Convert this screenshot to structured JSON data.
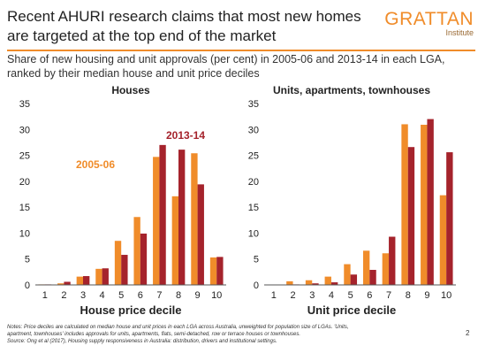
{
  "slide": {
    "title": "Recent AHURI research claims that most new homes are targeted at the top end of the market",
    "subtitle": "Share of new housing and unit approvals (per cent) in 2005-06 and 2013-14 in each LGA, ranked by their median house and unit price deciles",
    "logo": {
      "name": "GRATTAN",
      "sub": "Institute"
    },
    "notes": [
      "Notes: Price deciles are calculated on median house and unit prices in each LGA across Australia, unweighted for population size of LGAs. 'Units,",
      "apartment, townhouses' includes approvals for units, apartments, flats, semi-detached, row or terrace houses or townhouses.",
      "Source: Ong et al (2017), Housing supply responsiveness in Australia: distribution, drivers and institutional settings."
    ],
    "page_number": "2"
  },
  "colors": {
    "series_2005": "#f08c2a",
    "series_2013": "#a5232c",
    "accent": "#f08c2a"
  },
  "chart_data": [
    {
      "type": "bar",
      "title": "Houses",
      "xlabel": "House price decile",
      "ylabel": "",
      "ylim": [
        0,
        35
      ],
      "yticks": [
        0,
        5,
        10,
        15,
        20,
        25,
        30,
        35
      ],
      "categories": [
        "1",
        "2",
        "3",
        "4",
        "5",
        "6",
        "7",
        "8",
        "9",
        "10"
      ],
      "series": [
        {
          "name": "2005-06",
          "values": [
            0.1,
            0.3,
            1.6,
            3.1,
            8.5,
            13.1,
            24.7,
            17.1,
            25.4,
            5.3
          ]
        },
        {
          "name": "2013-14",
          "values": [
            0.1,
            0.6,
            1.7,
            3.2,
            5.8,
            9.9,
            27.0,
            26.1,
            19.4,
            5.4
          ]
        }
      ],
      "grid": false,
      "legend": "inline labels"
    },
    {
      "type": "bar",
      "title": "Units, apartments, townhouses",
      "xlabel": "Unit price decile",
      "ylabel": "",
      "ylim": [
        0,
        35
      ],
      "yticks": [
        0,
        5,
        10,
        15,
        20,
        25,
        30,
        35
      ],
      "categories": [
        "1",
        "2",
        "3",
        "4",
        "5",
        "6",
        "7",
        "8",
        "9",
        "10"
      ],
      "series": [
        {
          "name": "2005-06",
          "values": [
            0.0,
            0.7,
            0.9,
            1.6,
            4.0,
            6.6,
            6.1,
            31.0,
            30.9,
            17.3
          ]
        },
        {
          "name": "2013-14",
          "values": [
            0.0,
            0.1,
            0.3,
            0.5,
            2.0,
            2.9,
            9.3,
            26.6,
            32.0,
            25.6
          ]
        }
      ],
      "grid": false,
      "legend": "none"
    }
  ]
}
